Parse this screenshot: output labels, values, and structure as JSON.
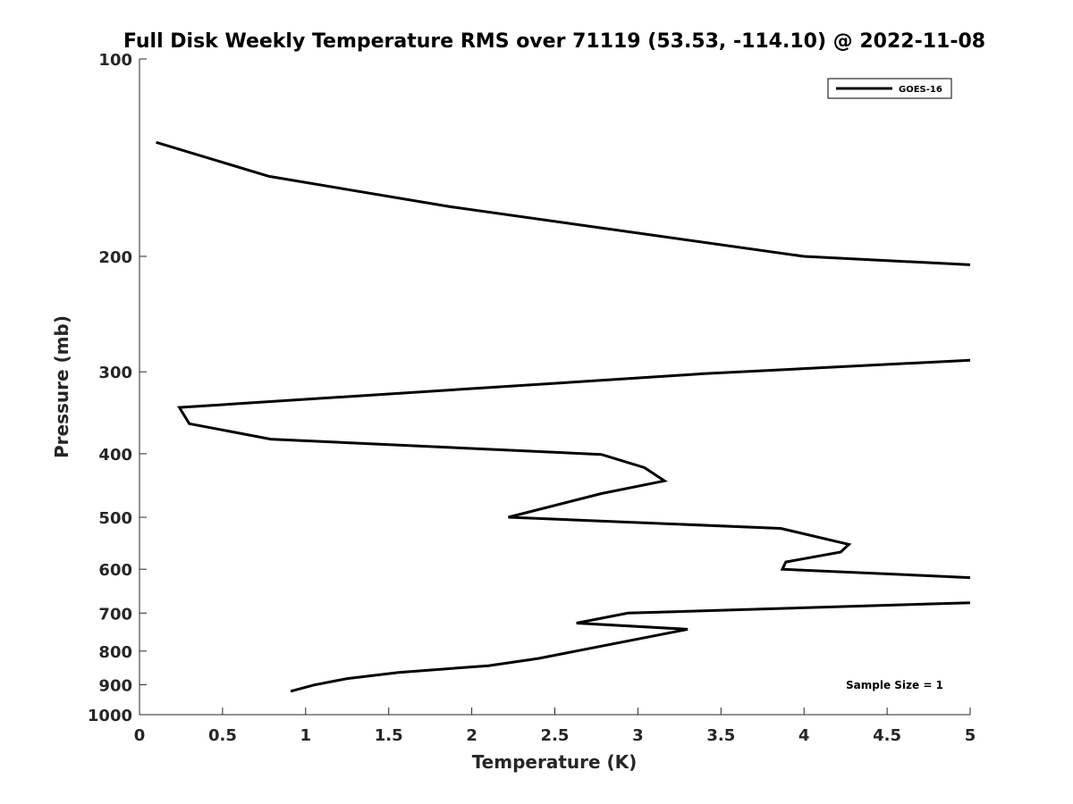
{
  "chart_data": {
    "type": "line",
    "title": "Full Disk Weekly Temperature RMS over 71119 (53.53, -114.10) @ 2022-11-08",
    "xlabel": "Temperature (K)",
    "ylabel": "Pressure (mb)",
    "xlim": [
      0,
      5
    ],
    "ylim": [
      100,
      1000
    ],
    "yscale": "log",
    "y_reversed": true,
    "grid": false,
    "legend_position": "top-right",
    "xticks": [
      "0",
      "0.5",
      "1",
      "1.5",
      "2",
      "2.5",
      "3",
      "3.5",
      "4",
      "4.5",
      "5"
    ],
    "yticks": [
      "100",
      "200",
      "300",
      "400",
      "500",
      "600",
      "700",
      "800",
      "900",
      "1000"
    ],
    "series": [
      {
        "name": "GOES-16",
        "color": "#000000",
        "points": [
          {
            "x": 0.1,
            "y": 134
          },
          {
            "x": 0.78,
            "y": 151
          },
          {
            "x": 1.87,
            "y": 168
          },
          {
            "x": 4.0,
            "y": 200
          },
          {
            "x": 5.0,
            "y": 206
          },
          {
            "x": null,
            "y": null
          },
          {
            "x": 5.0,
            "y": 288
          },
          {
            "x": 3.4,
            "y": 302
          },
          {
            "x": 0.24,
            "y": 340
          },
          {
            "x": 0.3,
            "y": 360
          },
          {
            "x": 0.79,
            "y": 380
          },
          {
            "x": 2.78,
            "y": 401
          },
          {
            "x": 3.04,
            "y": 420
          },
          {
            "x": 3.16,
            "y": 440
          },
          {
            "x": 2.78,
            "y": 460
          },
          {
            "x": 2.22,
            "y": 500
          },
          {
            "x": 3.86,
            "y": 520
          },
          {
            "x": 4.27,
            "y": 550
          },
          {
            "x": 4.22,
            "y": 565
          },
          {
            "x": 3.89,
            "y": 585
          },
          {
            "x": 3.87,
            "y": 600
          },
          {
            "x": 5.0,
            "y": 618
          },
          {
            "x": null,
            "y": null
          },
          {
            "x": 5.0,
            "y": 675
          },
          {
            "x": 2.94,
            "y": 700
          },
          {
            "x": 2.63,
            "y": 725
          },
          {
            "x": 3.3,
            "y": 741
          },
          {
            "x": 2.4,
            "y": 821
          },
          {
            "x": 2.1,
            "y": 842
          },
          {
            "x": 1.56,
            "y": 862
          },
          {
            "x": 1.25,
            "y": 881
          },
          {
            "x": 1.05,
            "y": 901
          },
          {
            "x": 0.91,
            "y": 921
          }
        ]
      }
    ],
    "annotations": [
      {
        "text": "Sample Size = 1",
        "position": "bottom-right"
      }
    ]
  }
}
